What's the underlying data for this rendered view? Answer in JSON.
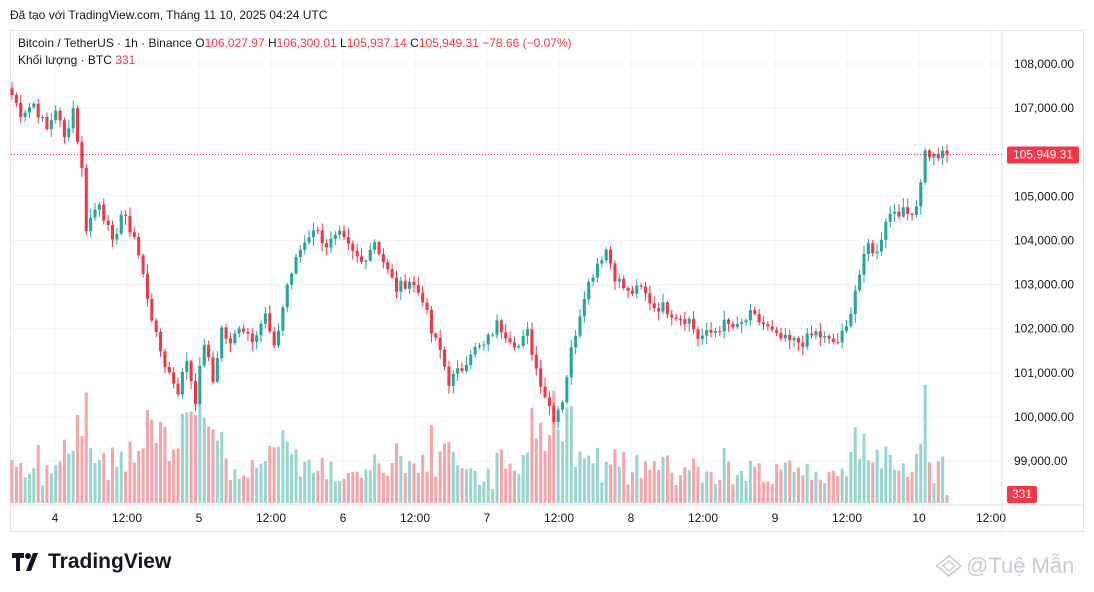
{
  "caption": "Đã tạo với TradingView.com, Tháng 11 10, 2025 04:24 UTC",
  "legend": {
    "symbol": "Bitcoin / TetherUS · 1h · Binance",
    "o_label": "O",
    "o": "106,027.97",
    "h_label": "H",
    "h": "106,300.01",
    "l_label": "L",
    "l": "105,937.14",
    "c_label": "C",
    "c": "105,949.31",
    "change": "−78.66 (−0.07%)",
    "volume_label": "Khối lượng · BTC",
    "volume_value": "331"
  },
  "price_badge": "105,949.31",
  "volume_badge": "331",
  "brand": "TradingView",
  "watermark": "@Tuệ Mẫn",
  "colors": {
    "up": "#26a69a",
    "down": "#f23645",
    "up_vol": "#9ad6cf",
    "down_vol": "#f5a6aa"
  },
  "chart_data": {
    "type": "candlestick",
    "y_ticks": [
      "108,000.00",
      "107,000.00",
      "106,000.00",
      "105,000.00",
      "104,000.00",
      "103,000.00",
      "102,000.00",
      "101,000.00",
      "100,000.00",
      "99,000.00"
    ],
    "ylim": [
      98300,
      108300
    ],
    "x_ticks": [
      "4",
      "12:00",
      "5",
      "12:00",
      "6",
      "12:00",
      "7",
      "12:00",
      "8",
      "12:00",
      "9",
      "12:00",
      "10",
      "12:00"
    ],
    "last_price": 105949.31,
    "anchors": [
      [
        0,
        107300
      ],
      [
        2,
        106900
      ],
      [
        5,
        107100
      ],
      [
        8,
        106500
      ],
      [
        10,
        107000
      ],
      [
        12,
        106300
      ],
      [
        14,
        107000
      ],
      [
        16,
        105600
      ],
      [
        17,
        104300
      ],
      [
        20,
        104900
      ],
      [
        23,
        103900
      ],
      [
        25,
        104600
      ],
      [
        28,
        104100
      ],
      [
        30,
        103200
      ],
      [
        33,
        101800
      ],
      [
        35,
        101200
      ],
      [
        38,
        100600
      ],
      [
        40,
        101300
      ],
      [
        42,
        100400
      ],
      [
        44,
        101700
      ],
      [
        46,
        100800
      ],
      [
        48,
        102000
      ],
      [
        50,
        101600
      ],
      [
        52,
        102100
      ],
      [
        55,
        101800
      ],
      [
        58,
        102300
      ],
      [
        60,
        101500
      ],
      [
        63,
        103000
      ],
      [
        66,
        103800
      ],
      [
        69,
        104300
      ],
      [
        72,
        103900
      ],
      [
        75,
        104100
      ],
      [
        78,
        103700
      ],
      [
        80,
        103500
      ],
      [
        83,
        104000
      ],
      [
        86,
        103300
      ],
      [
        88,
        102900
      ],
      [
        91,
        103100
      ],
      [
        94,
        102700
      ],
      [
        96,
        101900
      ],
      [
        98,
        101500
      ],
      [
        100,
        100800
      ],
      [
        103,
        101100
      ],
      [
        105,
        101500
      ],
      [
        108,
        101600
      ],
      [
        111,
        102100
      ],
      [
        113,
        101900
      ],
      [
        116,
        101600
      ],
      [
        118,
        101900
      ],
      [
        120,
        101100
      ],
      [
        122,
        100500
      ],
      [
        124,
        100000
      ],
      [
        126,
        100400
      ],
      [
        128,
        101500
      ],
      [
        131,
        102800
      ],
      [
        134,
        103500
      ],
      [
        136,
        103800
      ],
      [
        138,
        103200
      ],
      [
        141,
        102800
      ],
      [
        144,
        102900
      ],
      [
        147,
        102500
      ],
      [
        149,
        102500
      ],
      [
        152,
        102300
      ],
      [
        155,
        102200
      ],
      [
        157,
        101800
      ],
      [
        160,
        101900
      ],
      [
        163,
        102100
      ],
      [
        166,
        102000
      ],
      [
        169,
        102300
      ],
      [
        172,
        102100
      ],
      [
        175,
        101800
      ],
      [
        178,
        101700
      ],
      [
        181,
        101700
      ],
      [
        184,
        101900
      ],
      [
        187,
        101700
      ],
      [
        189,
        101700
      ],
      [
        191,
        102000
      ],
      [
        193,
        102900
      ],
      [
        196,
        103900
      ],
      [
        198,
        103700
      ],
      [
        200,
        104500
      ],
      [
        202,
        104700
      ],
      [
        205,
        104600
      ],
      [
        207,
        104800
      ],
      [
        209,
        106000
      ],
      [
        211,
        105900
      ],
      [
        214,
        105949
      ]
    ],
    "candle_count": 215,
    "volume_max": 100
  }
}
